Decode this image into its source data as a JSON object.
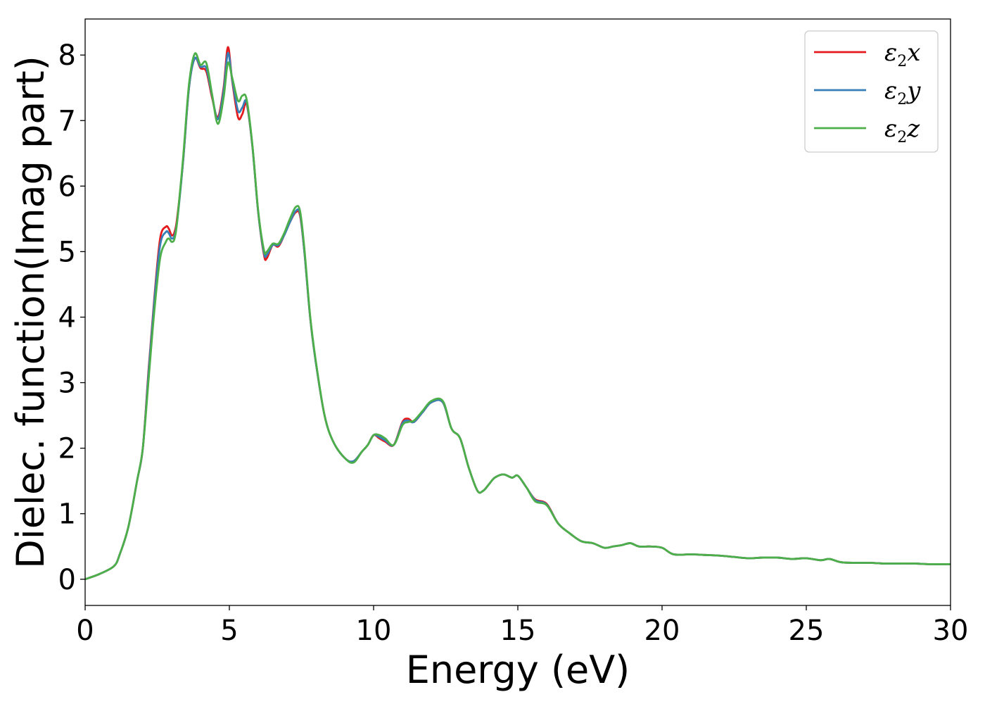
{
  "chart_data": {
    "type": "line",
    "title": "",
    "xlabel": "Energy (eV)",
    "ylabel": "Dielec. function(Imag part)",
    "xlim": [
      0,
      30
    ],
    "ylim": [
      -0.4,
      8.55
    ],
    "xticks": [
      0,
      5,
      10,
      15,
      20,
      25,
      30
    ],
    "yticks": [
      0,
      1,
      2,
      3,
      4,
      5,
      6,
      7,
      8
    ],
    "grid": false,
    "legend": "top-right",
    "series": [
      {
        "name": "ε2x",
        "legend_base": "ε",
        "legend_sub": "2",
        "legend_tail": "x",
        "color": "#e41a1c",
        "x": [
          0.0,
          0.5,
          1.0,
          1.2,
          1.5,
          1.8,
          2.0,
          2.2,
          2.4,
          2.6,
          2.8,
          2.9,
          3.0,
          3.1,
          3.2,
          3.4,
          3.6,
          3.8,
          4.0,
          4.2,
          4.4,
          4.6,
          4.8,
          4.95,
          5.1,
          5.3,
          5.45,
          5.6,
          5.8,
          6.0,
          6.2,
          6.3,
          6.5,
          6.7,
          6.9,
          7.1,
          7.3,
          7.45,
          7.6,
          7.8,
          8.0,
          8.3,
          8.6,
          9.0,
          9.3,
          9.6,
          9.8,
          10.0,
          10.2,
          10.4,
          10.7,
          11.0,
          11.2,
          11.4,
          11.7,
          12.0,
          12.4,
          12.7,
          13.0,
          13.3,
          13.6,
          13.8,
          14.0,
          14.2,
          14.5,
          14.8,
          15.0,
          15.3,
          15.6,
          16.0,
          16.4,
          16.8,
          17.2,
          17.6,
          18.0,
          18.3,
          18.6,
          18.9,
          19.2,
          19.6,
          20.0,
          20.4,
          21.0,
          21.5,
          22.0,
          22.5,
          23.0,
          23.5,
          24.0,
          24.5,
          25.0,
          25.5,
          25.8,
          26.2,
          26.7,
          27.2,
          27.7,
          28.2,
          28.7,
          29.3,
          30.0
        ],
        "y": [
          0.0,
          0.08,
          0.2,
          0.38,
          0.8,
          1.5,
          2.0,
          3.2,
          4.3,
          5.2,
          5.38,
          5.35,
          5.25,
          5.3,
          5.55,
          6.4,
          7.5,
          7.95,
          7.8,
          7.75,
          7.35,
          7.05,
          7.5,
          8.12,
          7.6,
          7.05,
          7.1,
          7.25,
          6.6,
          5.6,
          4.95,
          4.9,
          5.1,
          5.08,
          5.25,
          5.45,
          5.6,
          5.55,
          5.0,
          4.0,
          3.3,
          2.5,
          2.1,
          1.85,
          1.8,
          1.95,
          2.05,
          2.2,
          2.15,
          2.1,
          2.05,
          2.4,
          2.45,
          2.4,
          2.55,
          2.7,
          2.7,
          2.3,
          2.15,
          1.7,
          1.35,
          1.35,
          1.45,
          1.55,
          1.6,
          1.55,
          1.58,
          1.4,
          1.22,
          1.15,
          0.85,
          0.7,
          0.58,
          0.55,
          0.48,
          0.5,
          0.52,
          0.55,
          0.5,
          0.5,
          0.48,
          0.38,
          0.38,
          0.37,
          0.36,
          0.34,
          0.32,
          0.33,
          0.33,
          0.31,
          0.32,
          0.29,
          0.31,
          0.26,
          0.25,
          0.25,
          0.24,
          0.24,
          0.24,
          0.23,
          0.23
        ]
      },
      {
        "name": "ε2y",
        "legend_base": "ε",
        "legend_sub": "2",
        "legend_tail": "y",
        "color": "#377eb8",
        "x": [
          0.0,
          0.5,
          1.0,
          1.2,
          1.5,
          1.8,
          2.0,
          2.2,
          2.4,
          2.6,
          2.8,
          2.9,
          3.0,
          3.1,
          3.2,
          3.4,
          3.6,
          3.8,
          4.0,
          4.2,
          4.4,
          4.6,
          4.8,
          4.95,
          5.1,
          5.3,
          5.45,
          5.6,
          5.8,
          6.0,
          6.2,
          6.3,
          6.5,
          6.7,
          6.9,
          7.1,
          7.3,
          7.45,
          7.6,
          7.8,
          8.0,
          8.3,
          8.6,
          9.0,
          9.3,
          9.6,
          9.8,
          10.0,
          10.2,
          10.4,
          10.7,
          11.0,
          11.2,
          11.4,
          11.7,
          12.0,
          12.4,
          12.7,
          13.0,
          13.3,
          13.6,
          13.8,
          14.0,
          14.2,
          14.5,
          14.8,
          15.0,
          15.3,
          15.6,
          16.0,
          16.4,
          16.8,
          17.2,
          17.6,
          18.0,
          18.3,
          18.6,
          18.9,
          19.2,
          19.6,
          20.0,
          20.4,
          21.0,
          21.5,
          22.0,
          22.5,
          23.0,
          23.5,
          24.0,
          24.5,
          25.0,
          25.5,
          25.8,
          26.2,
          26.7,
          27.2,
          27.7,
          28.2,
          28.7,
          29.3,
          30.0
        ],
        "y": [
          0.0,
          0.08,
          0.2,
          0.38,
          0.8,
          1.5,
          2.0,
          3.15,
          4.25,
          5.1,
          5.3,
          5.28,
          5.2,
          5.25,
          5.5,
          6.4,
          7.5,
          7.95,
          7.82,
          7.8,
          7.38,
          7.02,
          7.45,
          8.03,
          7.62,
          7.15,
          7.2,
          7.28,
          6.6,
          5.6,
          4.98,
          4.95,
          5.1,
          5.1,
          5.25,
          5.45,
          5.62,
          5.58,
          5.0,
          4.0,
          3.3,
          2.5,
          2.1,
          1.85,
          1.8,
          1.95,
          2.05,
          2.2,
          2.17,
          2.12,
          2.05,
          2.38,
          2.42,
          2.4,
          2.55,
          2.7,
          2.7,
          2.3,
          2.15,
          1.7,
          1.35,
          1.35,
          1.45,
          1.55,
          1.6,
          1.55,
          1.58,
          1.4,
          1.21,
          1.14,
          0.85,
          0.7,
          0.58,
          0.55,
          0.48,
          0.5,
          0.52,
          0.55,
          0.5,
          0.5,
          0.48,
          0.38,
          0.38,
          0.37,
          0.36,
          0.34,
          0.32,
          0.33,
          0.33,
          0.31,
          0.32,
          0.29,
          0.31,
          0.26,
          0.25,
          0.25,
          0.24,
          0.24,
          0.24,
          0.23,
          0.23
        ]
      },
      {
        "name": "ε2z",
        "legend_base": "ε",
        "legend_sub": "2",
        "legend_tail": "z",
        "color": "#4daf4a",
        "x": [
          0.0,
          0.5,
          1.0,
          1.2,
          1.5,
          1.8,
          2.0,
          2.2,
          2.4,
          2.6,
          2.8,
          2.9,
          3.0,
          3.1,
          3.2,
          3.4,
          3.6,
          3.8,
          4.0,
          4.2,
          4.4,
          4.6,
          4.8,
          4.95,
          5.1,
          5.3,
          5.45,
          5.6,
          5.8,
          6.0,
          6.2,
          6.3,
          6.5,
          6.7,
          6.9,
          7.1,
          7.3,
          7.45,
          7.6,
          7.8,
          8.0,
          8.3,
          8.6,
          9.0,
          9.3,
          9.6,
          9.8,
          10.0,
          10.2,
          10.4,
          10.7,
          11.0,
          11.2,
          11.4,
          11.7,
          12.0,
          12.4,
          12.7,
          13.0,
          13.3,
          13.6,
          13.8,
          14.0,
          14.2,
          14.5,
          14.8,
          15.0,
          15.3,
          15.6,
          16.0,
          16.4,
          16.8,
          17.2,
          17.6,
          18.0,
          18.3,
          18.6,
          18.9,
          19.2,
          19.6,
          20.0,
          20.4,
          21.0,
          21.5,
          22.0,
          22.5,
          23.0,
          23.5,
          24.0,
          24.5,
          25.0,
          25.5,
          25.8,
          26.2,
          26.7,
          27.2,
          27.7,
          28.2,
          28.7,
          29.3,
          30.0
        ],
        "y": [
          0.0,
          0.08,
          0.2,
          0.38,
          0.8,
          1.5,
          2.0,
          3.05,
          4.1,
          4.9,
          5.15,
          5.2,
          5.15,
          5.2,
          5.5,
          6.45,
          7.55,
          8.02,
          7.85,
          7.88,
          7.4,
          6.95,
          7.35,
          7.88,
          7.65,
          7.3,
          7.38,
          7.32,
          6.62,
          5.62,
          5.02,
          5.0,
          5.12,
          5.12,
          5.28,
          5.5,
          5.68,
          5.62,
          5.05,
          4.02,
          3.32,
          2.5,
          2.1,
          1.85,
          1.78,
          1.95,
          2.05,
          2.2,
          2.2,
          2.15,
          2.05,
          2.35,
          2.4,
          2.42,
          2.57,
          2.72,
          2.72,
          2.3,
          2.15,
          1.7,
          1.35,
          1.35,
          1.45,
          1.55,
          1.6,
          1.55,
          1.58,
          1.4,
          1.19,
          1.13,
          0.85,
          0.7,
          0.58,
          0.55,
          0.48,
          0.5,
          0.52,
          0.55,
          0.5,
          0.5,
          0.48,
          0.38,
          0.38,
          0.37,
          0.36,
          0.34,
          0.32,
          0.33,
          0.33,
          0.31,
          0.32,
          0.29,
          0.31,
          0.26,
          0.25,
          0.25,
          0.24,
          0.24,
          0.24,
          0.23,
          0.23
        ]
      }
    ]
  }
}
